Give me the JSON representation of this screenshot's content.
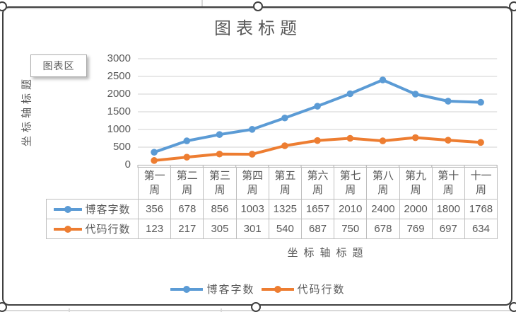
{
  "window": {
    "tooltip_label": "图表区"
  },
  "chart": {
    "title": "图表标题",
    "y_axis_title": "坐标轴标题",
    "x_axis_title": "坐标轴标题"
  },
  "colors": {
    "series1": "#5B9BD5",
    "series2": "#ED7D31",
    "text": "#595959",
    "grid": "#D9D9D9",
    "axis": "#BFBFBF",
    "table_border": "#BFBFBF",
    "selection_border": "#404040"
  },
  "chart_data": {
    "type": "line",
    "title": "图表标题",
    "xlabel": "坐标轴标题",
    "ylabel": "坐标轴标题",
    "categories": [
      "第一周",
      "第二周",
      "第三周",
      "第四周",
      "第五周",
      "第六周",
      "第七周",
      "第八周",
      "第九周",
      "第十周",
      "十一周"
    ],
    "series": [
      {
        "name": "博客字数",
        "color": "#5B9BD5",
        "values": [
          356,
          678,
          856,
          1003,
          1325,
          1657,
          2010,
          2400,
          2000,
          1800,
          1768
        ]
      },
      {
        "name": "代码行数",
        "color": "#ED7D31",
        "values": [
          123,
          217,
          305,
          301,
          540,
          687,
          750,
          678,
          769,
          697,
          634
        ]
      }
    ],
    "ylim": [
      0,
      3000
    ],
    "ytick_step": 500,
    "y_ticks": [
      0,
      500,
      1000,
      1500,
      2000,
      2500,
      3000
    ],
    "grid": true,
    "legend_position": "bottom",
    "data_table_shown": true
  }
}
